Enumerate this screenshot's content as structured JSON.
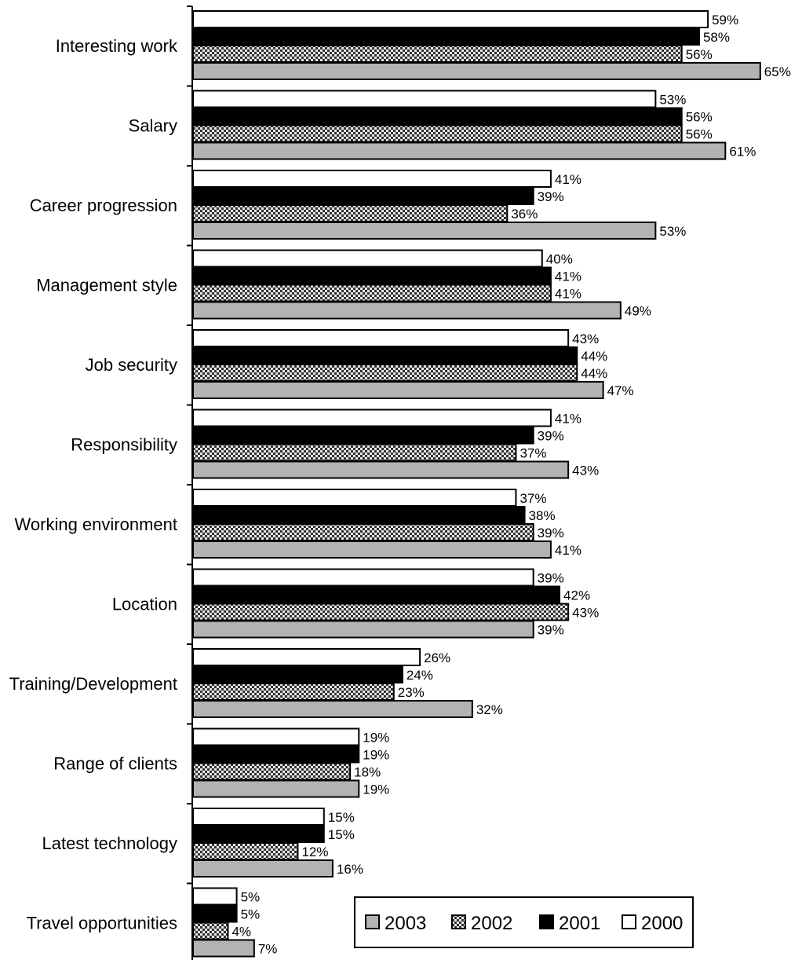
{
  "chart_data": {
    "type": "bar",
    "orientation": "horizontal",
    "categories": [
      "Interesting work",
      "Salary",
      "Career progression",
      "Management style",
      "Job security",
      "Responsibility",
      "Working environment",
      "Location",
      "Training/Development",
      "Range of clients",
      "Latest technology",
      "Travel opportunities"
    ],
    "series": [
      {
        "name": "2000",
        "values": [
          59,
          53,
          41,
          40,
          43,
          41,
          37,
          39,
          26,
          19,
          15,
          5
        ],
        "labels": [
          "59%",
          "53%",
          "41%",
          "40%",
          "43%",
          "41%",
          "37%",
          "39%",
          "26%",
          "19%",
          "15%",
          "5%"
        ],
        "fill": "#ffffff"
      },
      {
        "name": "2001",
        "values": [
          58,
          56,
          39,
          41,
          44,
          39,
          38,
          42,
          24,
          19,
          15,
          5
        ],
        "labels": [
          "58%",
          "56%",
          "39%",
          "41%",
          "44%",
          "39%",
          "38%",
          "42%",
          "24%",
          "19%",
          "15%",
          "5%"
        ],
        "fill": "#000000"
      },
      {
        "name": "2002",
        "values": [
          56,
          56,
          36,
          41,
          44,
          37,
          39,
          43,
          23,
          18,
          12,
          4
        ],
        "labels": [
          "56%",
          "56%",
          "36%",
          "41%",
          "44%",
          "37%",
          "39%",
          "43%",
          "23%",
          "18%",
          "12%",
          "4%"
        ],
        "fill": "checkered"
      },
      {
        "name": "2003",
        "values": [
          65,
          61,
          53,
          49,
          47,
          43,
          41,
          39,
          32,
          19,
          16,
          7
        ],
        "labels": [
          "65%",
          "61%",
          "53%",
          "49%",
          "47%",
          "43%",
          "41%",
          "39%",
          "32%",
          "19%",
          "16%",
          "7%"
        ],
        "fill": "#b3b3b3"
      }
    ],
    "legend_order": [
      "2003",
      "2002",
      "2001",
      "2000"
    ],
    "legend_position": "bottom-right",
    "xlim": [
      0,
      65
    ],
    "grid": false,
    "title": "",
    "xlabel": "",
    "ylabel": ""
  }
}
